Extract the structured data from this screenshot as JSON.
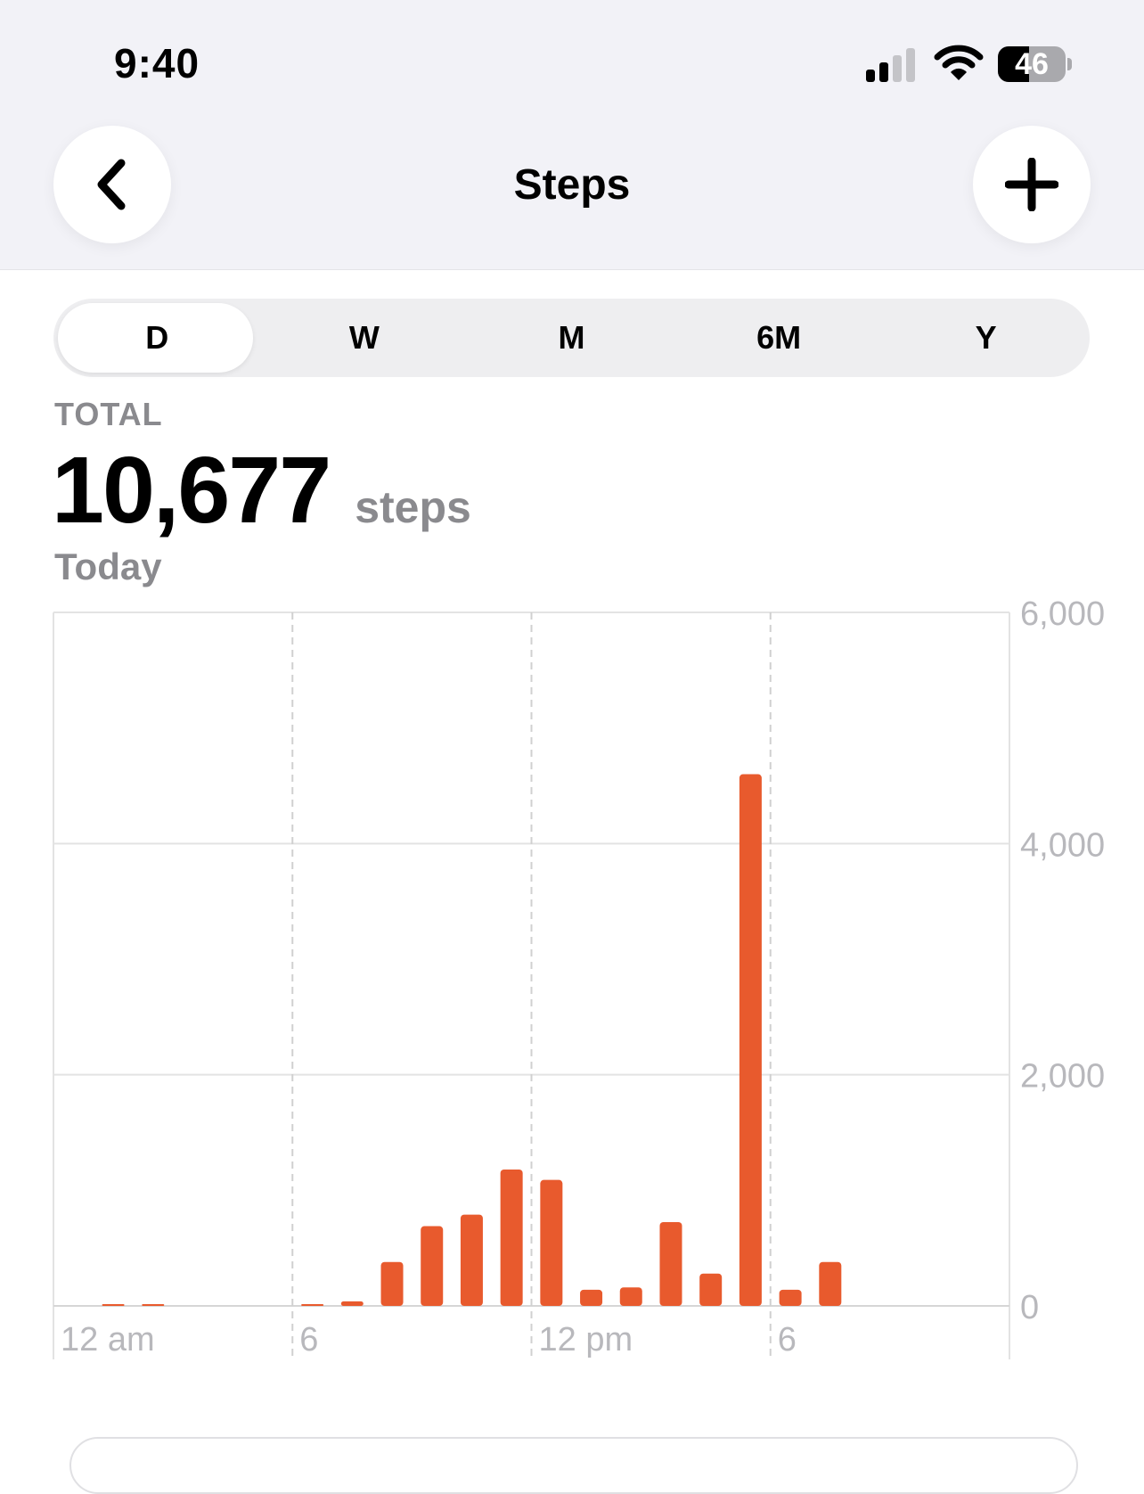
{
  "status_bar": {
    "time": "9:40",
    "battery": "46",
    "signal_bars": 2,
    "signal_total": 4
  },
  "header": {
    "title": "Steps",
    "back_icon": "chevron-left-icon",
    "add_icon": "plus-icon"
  },
  "segments": {
    "items": [
      "D",
      "W",
      "M",
      "6M",
      "Y"
    ],
    "selected": "D"
  },
  "summary": {
    "label": "TOTAL",
    "value": "10,677",
    "unit": "steps",
    "period": "Today"
  },
  "colors": {
    "bar": "#e85a2d",
    "accent_bg": "#f2f2f7"
  },
  "chart_data": {
    "type": "bar",
    "x_tick_labels": [
      "12 am",
      "6",
      "12 pm",
      "6"
    ],
    "y_tick_labels": [
      "0",
      "2,000",
      "4,000",
      "6,000"
    ],
    "y_ticks": [
      0,
      2000,
      4000,
      6000
    ],
    "ylim": [
      0,
      6000
    ],
    "x_unit": "hour",
    "hours": [
      1,
      2,
      6,
      7,
      8,
      9,
      10,
      11,
      12,
      13,
      14,
      15,
      16,
      17,
      18,
      19
    ],
    "values": [
      5,
      15,
      5,
      40,
      380,
      690,
      790,
      1180,
      1090,
      140,
      160,
      725,
      280,
      4600,
      140,
      380
    ],
    "grid": true,
    "y_axis_position": "right"
  }
}
